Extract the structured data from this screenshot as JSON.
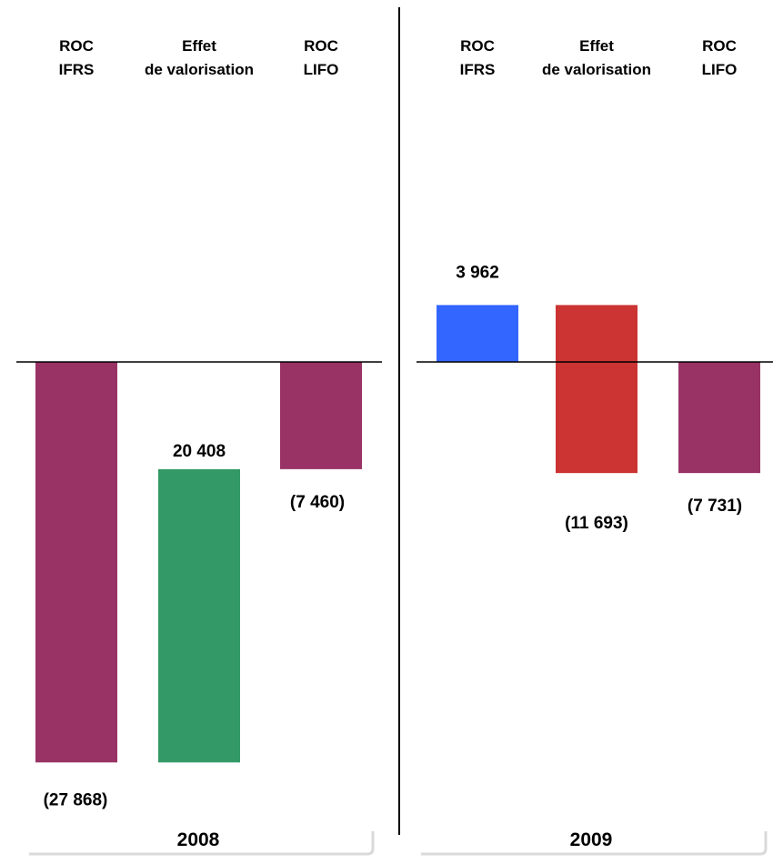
{
  "colors": {
    "roc": "#993366",
    "effect_positive": "#339966",
    "effect_negative": "#cc3333",
    "roc_ifrs_2009": "#3366ff",
    "axis": "#000000",
    "year_box": "#d9d9d9"
  },
  "chart_data": [
    {
      "type": "bar",
      "subtype": "waterfall",
      "year_label": "2008",
      "categories": [
        {
          "line1": "ROC",
          "line2": "IFRS"
        },
        {
          "line1": "Effet",
          "line2": "de valorisation"
        },
        {
          "line1": "ROC",
          "line2": "LIFO"
        }
      ],
      "bars": [
        {
          "start": 0,
          "end": -27868,
          "label": "(27 868)",
          "color": "#993366"
        },
        {
          "start": -27868,
          "end": -7460,
          "label": "20 408",
          "color": "#339966"
        },
        {
          "start": 0,
          "end": -7460,
          "label": "(7 460)",
          "color": "#993366"
        }
      ],
      "ylim": [
        -32000,
        25000
      ]
    },
    {
      "type": "bar",
      "subtype": "waterfall",
      "year_label": "2009",
      "categories": [
        {
          "line1": "ROC",
          "line2": "IFRS"
        },
        {
          "line1": "Effet",
          "line2": "de valorisation"
        },
        {
          "line1": "ROC",
          "line2": "LIFO"
        }
      ],
      "bars": [
        {
          "start": 0,
          "end": 3962,
          "label": "3 962",
          "color": "#3366ff"
        },
        {
          "start": 3962,
          "end": -7731,
          "label": "(11 693)",
          "color": "#cc3333"
        },
        {
          "start": 0,
          "end": -7731,
          "label": "(7 731)",
          "color": "#993366"
        }
      ],
      "ylim": [
        -32000,
        25000
      ]
    }
  ]
}
